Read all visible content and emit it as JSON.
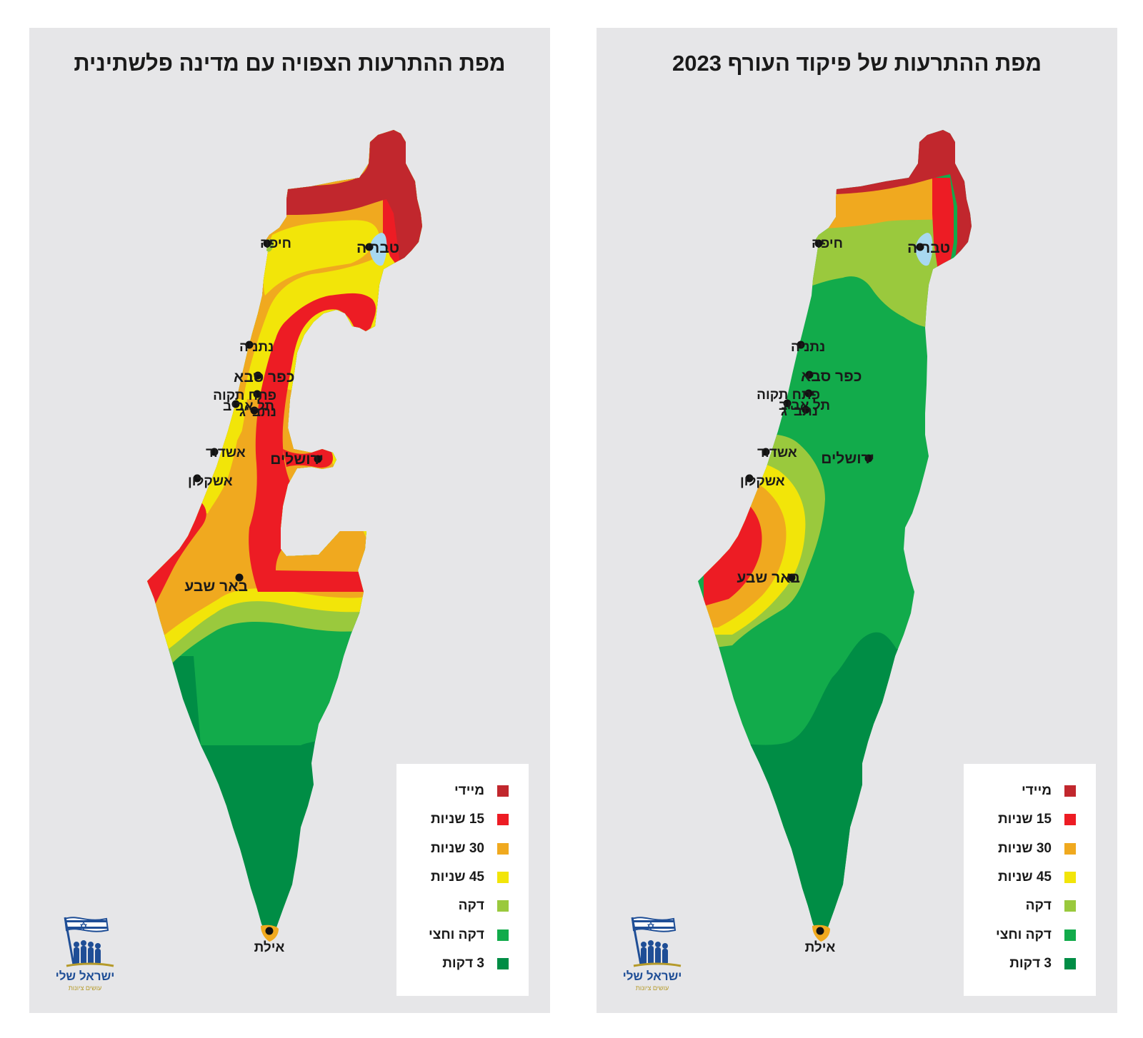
{
  "colors": {
    "immediate": "#c1272d",
    "s15": "#ed1c24",
    "s30": "#f0a91f",
    "s45": "#f2e509",
    "minute": "#9ac93d",
    "minute_half": "#12ab4b",
    "min3": "#008d45",
    "lake": "#a8d8f0",
    "panel": "#e6e6e8"
  },
  "legend": [
    {
      "key": "immediate",
      "label": "מיידי"
    },
    {
      "key": "s15",
      "label": "15 שניות"
    },
    {
      "key": "s30",
      "label": "30 שניות"
    },
    {
      "key": "s45",
      "label": "45 שניות"
    },
    {
      "key": "minute",
      "label": "דקה"
    },
    {
      "key": "minute_half",
      "label": "דקה וחצי"
    },
    {
      "key": "min3",
      "label": "3 דקות"
    }
  ],
  "logo": {
    "name": "ישראל שלי",
    "tagline": "עושים ציונות",
    "icon": "flag-with-people-icon"
  },
  "maps": {
    "left": {
      "title": "מפת ההתרעות הצפויה עם מדינה פלשתינית",
      "cities": [
        {
          "id": "haifa",
          "label": "חיפה"
        },
        {
          "id": "tiberias",
          "label": "טבריה"
        },
        {
          "id": "netanya",
          "label": "נתניה"
        },
        {
          "id": "kfar-saba",
          "label": "כפר סבא"
        },
        {
          "id": "petah-tikva",
          "label": "פתח תקוה"
        },
        {
          "id": "tel-aviv",
          "label": "תל אביב"
        },
        {
          "id": "ben-gurion",
          "label": "נתב\"ג"
        },
        {
          "id": "ashdod",
          "label": "אשדוד"
        },
        {
          "id": "jerusalem",
          "label": "ירושלים"
        },
        {
          "id": "ashkelon",
          "label": "אשקלון"
        },
        {
          "id": "beersheba",
          "label": "באר שבע"
        },
        {
          "id": "eilat",
          "label": "אילת"
        }
      ]
    },
    "right": {
      "title": "מפת ההתרעות של פיקוד העורף 2023",
      "cities": [
        {
          "id": "haifa",
          "label": "חיפה"
        },
        {
          "id": "tiberias",
          "label": "טבריה"
        },
        {
          "id": "netanya",
          "label": "נתניה"
        },
        {
          "id": "kfar-saba",
          "label": "כפר סבא"
        },
        {
          "id": "petah-tikva",
          "label": "פתח תקוה"
        },
        {
          "id": "tel-aviv",
          "label": "תל אביב"
        },
        {
          "id": "ben-gurion",
          "label": "נתב\"ג"
        },
        {
          "id": "ashdod",
          "label": "אשדוד"
        },
        {
          "id": "jerusalem",
          "label": "ירושלים"
        },
        {
          "id": "ashkelon",
          "label": "אשקלון"
        },
        {
          "id": "beersheba",
          "label": "באר שבע"
        },
        {
          "id": "eilat",
          "label": "אילת"
        }
      ]
    }
  }
}
